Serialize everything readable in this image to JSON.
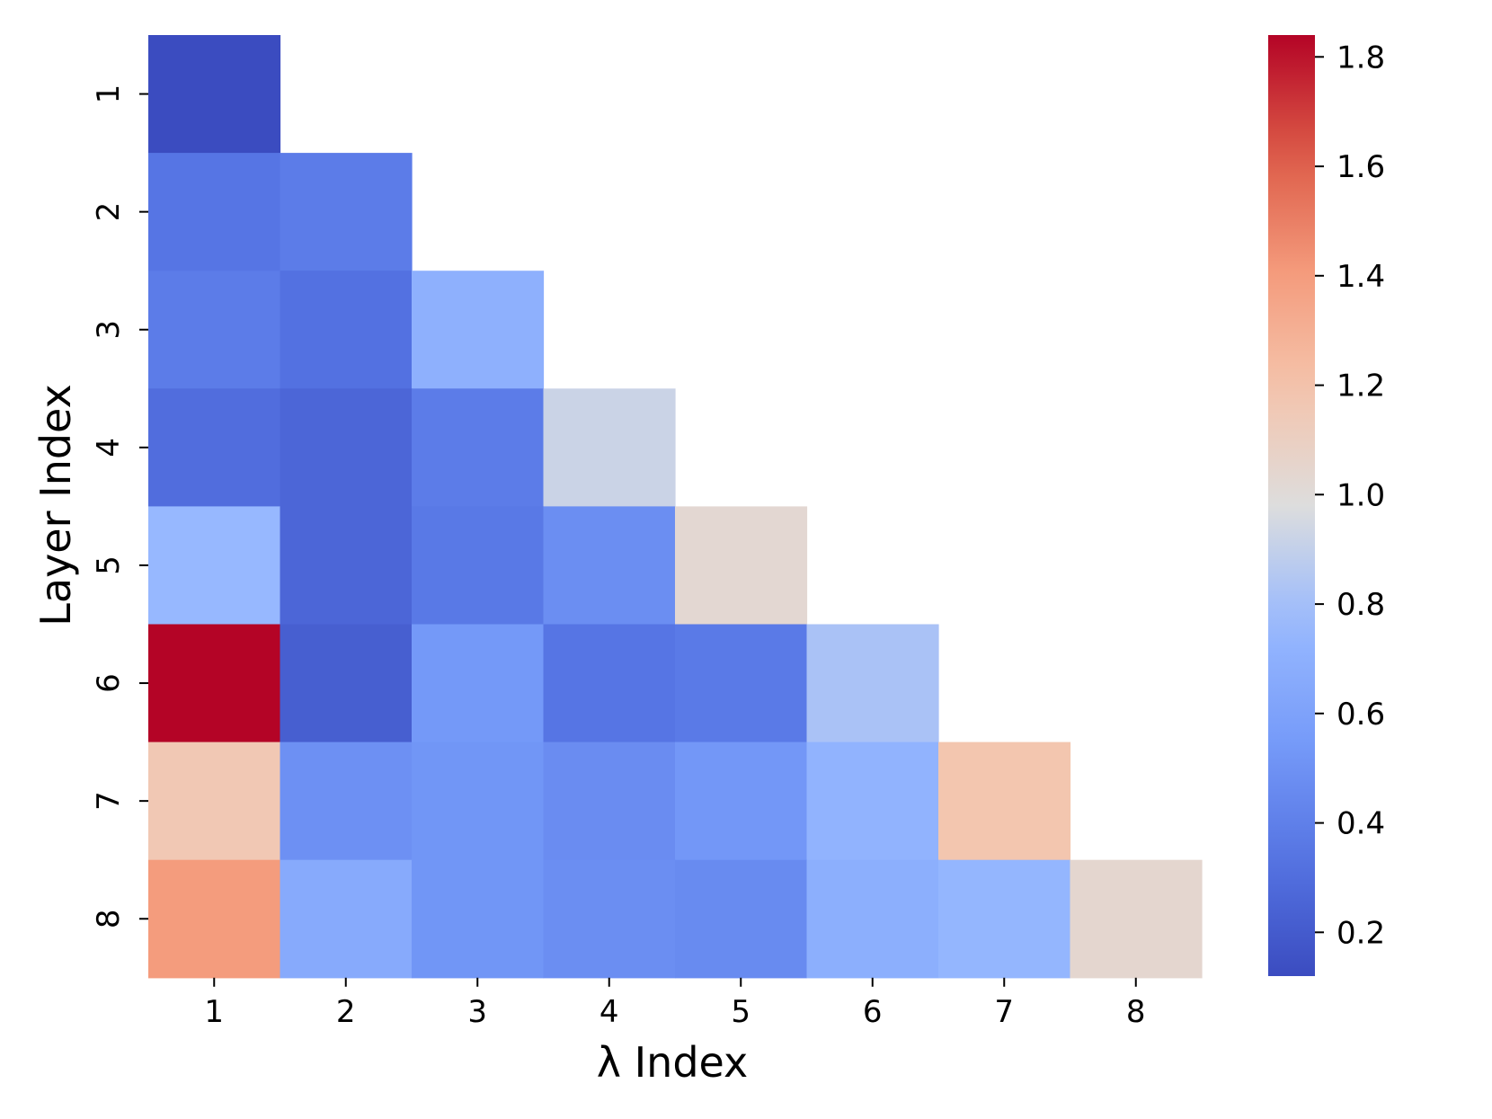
{
  "chart_data": {
    "type": "heatmap",
    "xlabel": "λ Index",
    "ylabel": "Layer Index",
    "x_categories": [
      "1",
      "2",
      "3",
      "4",
      "5",
      "6",
      "7",
      "8"
    ],
    "y_categories": [
      "1",
      "2",
      "3",
      "4",
      "5",
      "6",
      "7",
      "8"
    ],
    "matrix_shape": "lower-triangular",
    "values": [
      [
        0.12
      ],
      [
        0.34,
        0.38
      ],
      [
        0.38,
        0.32,
        0.7
      ],
      [
        0.3,
        0.26,
        0.38,
        0.92
      ],
      [
        0.76,
        0.26,
        0.36,
        0.48,
        1.03
      ],
      [
        1.84,
        0.22,
        0.54,
        0.34,
        0.37,
        0.82
      ],
      [
        1.16,
        0.49,
        0.52,
        0.47,
        0.53,
        0.72,
        1.18
      ],
      [
        1.4,
        0.66,
        0.52,
        0.48,
        0.46,
        0.69,
        0.74,
        1.04
      ]
    ],
    "colormap": "coolwarm",
    "colorbar": {
      "vmin": 0.12,
      "vmax": 1.84,
      "ticks": [
        "0.2",
        "0.4",
        "0.6",
        "0.8",
        "1.0",
        "1.2",
        "1.4",
        "1.6",
        "1.8"
      ]
    },
    "colors": {
      "low": "#3b4cc0",
      "mid": "#dddddd",
      "high": "#b40426"
    }
  }
}
